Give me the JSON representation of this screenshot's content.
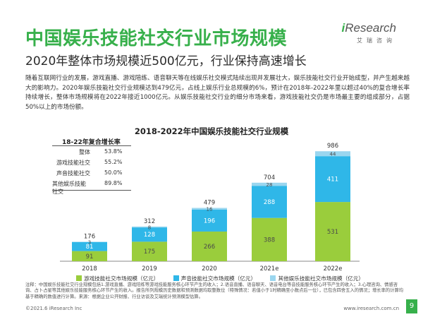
{
  "title": "中国娱乐技能社交行业市场规模",
  "subtitle": "2020年整体市场规模近500亿元，行业保持高速增长",
  "logo": {
    "brand_i": "i",
    "brand_rest": "Research",
    "sub": "艾瑞咨询"
  },
  "paragraph": "随着互联网行业的发展，游戏直播、游戏陪练、语音聊天等在线娱乐社交模式陆续出现并发展壮大，娱乐技能社交行业开始成型，并产生越来越大的影响力。2020年娱乐技能社交行业规模达到479亿元，占线上娱乐行业总规模的6%，预计在2018年-2022年里以超过40%的复合增长率持续增长，整体市场规模将在2022年接近1000亿元。从娱乐技能社交行业的细分市场来看，游戏技能社交仍是市场最主要的组成部分，占据50%以上的市场份额。",
  "growth_table": {
    "title": "18-22年复合增长率",
    "rows": [
      {
        "label": "整体",
        "value": "53.8%"
      },
      {
        "label": "游戏技能社交",
        "value": "55.2%"
      },
      {
        "label": "声音技能社交",
        "value": "50.0%"
      },
      {
        "label": "其他娱乐技能社交",
        "value": "89.8%"
      }
    ]
  },
  "chart_data": {
    "type": "bar",
    "stacked": true,
    "title": "2018-2022年中国娱乐技能社交行业规模",
    "categories": [
      "2018",
      "2019",
      "2020",
      "2021e",
      "2022e"
    ],
    "series": [
      {
        "name": "游戏技能社交市场规模（亿元）",
        "color": "#9acd3c",
        "values": [
          91,
          175,
          266,
          388,
          531
        ]
      },
      {
        "name": "声音技能社交市场规模（亿元）",
        "color": "#2fb7e8",
        "values": [
          81,
          128,
          196,
          288,
          411
        ]
      },
      {
        "name": "其他娱乐技能社交市场规模（亿元）",
        "color": "#9ad6ef",
        "values": [
          3,
          8,
          16,
          28,
          44
        ]
      }
    ],
    "totals": [
      176,
      312,
      479,
      704,
      986
    ],
    "ylim": [
      0,
      1000
    ],
    "xlabel": "",
    "ylabel": "",
    "grid": false
  },
  "notes": "注释：中国娱乐技能社交行业规模包括1.游戏直播、游戏陪练等游戏技能服务核心环节产生的收入；2.语音直播、语音聊天、语音电台等音技能服务核心环节产生的收入；3.心理咨询、情感咨询、占卜占星等其他娱乐技能服务核心环节产生的收入。报告所列规模历史数据和预测数据均取整数位（特殊情况：若值小于1时精确至小数点后一位），已包含四舍五入的情况；增长率的计算均基于精确的数值进行计算。来源：根据企业公开财报、行业访谈及艾瑞统计预测模型估算。",
  "footer": {
    "copyright": "©2021.6 iResearch Inc",
    "website": "www.iresearch.com.cn",
    "page": "9"
  }
}
